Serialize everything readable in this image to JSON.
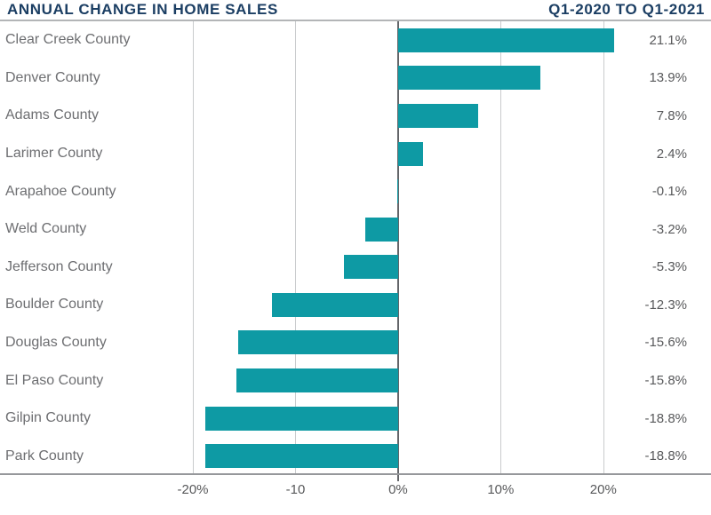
{
  "header": {
    "title_left": "ANNUAL CHANGE IN HOME SALES",
    "title_right": "Q1-2020 TO Q1-2021"
  },
  "colors": {
    "bar": "#0E9AA4",
    "title": "#1B3E63",
    "category_label": "#6D6E71",
    "value_label": "#58595B",
    "gridline": "#C9CBCD",
    "zero_line": "#636569",
    "header_underline": "#B3B5B7",
    "axis_line": "#96989B"
  },
  "chart_data": {
    "type": "bar",
    "orientation": "horizontal",
    "title": "ANNUAL CHANGE IN HOME SALES",
    "subtitle": "Q1-2020 TO Q1-2021",
    "xlabel": "",
    "ylabel": "",
    "grid": "vertical",
    "legend": "none",
    "xlim": [
      -38.8,
      30.5
    ],
    "categories": [
      "Clear Creek County",
      "Denver County",
      "Adams County",
      "Larimer County",
      "Arapahoe County",
      "Weld County",
      "Jefferson County",
      "Boulder County",
      "Douglas County",
      "El Paso County",
      "Gilpin County",
      "Park County"
    ],
    "values": [
      21.1,
      13.9,
      7.8,
      2.4,
      -0.1,
      -3.2,
      -5.3,
      -12.3,
      -15.6,
      -15.8,
      -18.8,
      -18.8
    ],
    "value_labels": [
      "21.1%",
      "13.9%",
      "7.8%",
      "2.4%",
      "-0.1%",
      "-3.2%",
      "-5.3%",
      "-12.3%",
      "-15.6%",
      "-15.8%",
      "-18.8%",
      "-18.8%"
    ],
    "x_ticks": [
      {
        "value": -20,
        "label": "-20%"
      },
      {
        "value": -10,
        "label": "-10"
      },
      {
        "value": 0,
        "label": "0%"
      },
      {
        "value": 10,
        "label": "10%"
      },
      {
        "value": 20,
        "label": "20%"
      }
    ]
  }
}
